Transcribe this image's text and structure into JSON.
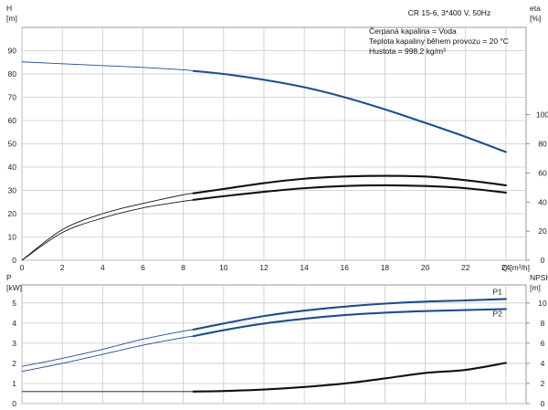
{
  "chart_data": [
    {
      "type": "line",
      "title": "CR 15-6, 3*400 V, 50Hz",
      "info_lines": [
        "Čerpaná kapalina = Voda",
        "Teplota kapaliny během provozu = 20 °C",
        "Hustota = 998.2 kg/m³"
      ],
      "x_label": "Q [m³/h]",
      "x_ticks": [
        "0",
        "2",
        "4",
        "6",
        "8",
        "10",
        "12",
        "14",
        "16",
        "18",
        "20",
        "22",
        "24"
      ],
      "xlim": [
        0,
        25
      ],
      "y_left_label": [
        "H",
        "[m]"
      ],
      "y_left_ticks": [
        "0",
        "10",
        "20",
        "30",
        "40",
        "50",
        "60",
        "70",
        "80",
        "90"
      ],
      "y_left_lim": [
        0,
        100
      ],
      "y_right_label": [
        "eta",
        "[%]"
      ],
      "y_right_ticks": [
        "0",
        "20",
        "40",
        "60",
        "80",
        "100"
      ],
      "y_right_lim": [
        0,
        160
      ],
      "grid": true,
      "series": [
        {
          "name": "",
          "axis": "left",
          "color": "#1f4e8c",
          "x": [
            0,
            2,
            4,
            6,
            8,
            8.5,
            10,
            12,
            14,
            16,
            18,
            20,
            22,
            24
          ],
          "y": [
            85.2,
            84.4,
            83.6,
            82.8,
            81.8,
            81.3,
            80.0,
            77.5,
            74.3,
            70.0,
            64.8,
            59.0,
            53.0,
            46.5
          ],
          "bold_from": 8.5
        },
        {
          "name": "",
          "axis": "right",
          "color": "#111111",
          "x": [
            0,
            2,
            4,
            6,
            8,
            8.5,
            10,
            12,
            14,
            16,
            18,
            20,
            22,
            24
          ],
          "y": [
            0,
            21,
            32,
            39,
            45,
            46,
            49,
            53,
            56,
            57.5,
            58,
            57.5,
            55,
            51.5
          ],
          "bold_from": 8.5
        },
        {
          "name": "",
          "axis": "right",
          "color": "#111111",
          "x": [
            0,
            2,
            4,
            6,
            8,
            8.5,
            10,
            12,
            14,
            16,
            18,
            20,
            22,
            24
          ],
          "y": [
            0,
            19,
            29,
            36,
            40.5,
            41.5,
            44,
            47,
            49.5,
            51,
            51.5,
            51,
            49.5,
            46.5
          ],
          "bold_from": 8.5
        }
      ]
    },
    {
      "type": "line",
      "x_ticks": [
        "0",
        "2",
        "4",
        "6",
        "8",
        "10",
        "12",
        "14",
        "16",
        "18",
        "20",
        "22",
        "24"
      ],
      "xlim": [
        0,
        25
      ],
      "y_left_label": [
        "P",
        "[kW]"
      ],
      "y_left_ticks": [
        "0",
        "1",
        "2",
        "3",
        "4",
        "5"
      ],
      "y_left_lim": [
        0,
        5.9
      ],
      "y_right_label": [
        "NPSH",
        "[m]"
      ],
      "y_right_ticks": [
        "0",
        "2",
        "4",
        "6",
        "8",
        "10"
      ],
      "y_right_lim": [
        0,
        11.8
      ],
      "grid": true,
      "series": [
        {
          "name": "P1",
          "axis": "left",
          "color": "#1f4e8c",
          "x": [
            0,
            2,
            4,
            6,
            8,
            8.5,
            10,
            12,
            14,
            16,
            18,
            20,
            22,
            24
          ],
          "y": [
            1.85,
            2.25,
            2.7,
            3.2,
            3.6,
            3.68,
            3.98,
            4.35,
            4.62,
            4.82,
            4.97,
            5.07,
            5.13,
            5.2
          ],
          "bold_from": 8.5
        },
        {
          "name": "P2",
          "axis": "left",
          "color": "#1f4e8c",
          "x": [
            0,
            2,
            4,
            6,
            8,
            8.5,
            10,
            12,
            14,
            16,
            18,
            20,
            22,
            24
          ],
          "y": [
            1.6,
            2.0,
            2.45,
            2.9,
            3.28,
            3.35,
            3.65,
            3.98,
            4.22,
            4.4,
            4.52,
            4.6,
            4.65,
            4.7
          ],
          "bold_from": 8.5
        },
        {
          "name": "",
          "axis": "right",
          "color": "#111111",
          "x": [
            0,
            2,
            4,
            6,
            8,
            8.5,
            10,
            12,
            14,
            16,
            18,
            20,
            22,
            24
          ],
          "y": [
            1.2,
            1.2,
            1.2,
            1.2,
            1.2,
            1.2,
            1.25,
            1.4,
            1.65,
            2.0,
            2.5,
            3.05,
            3.35,
            4.05
          ],
          "bold_from": 8.5
        }
      ]
    }
  ]
}
